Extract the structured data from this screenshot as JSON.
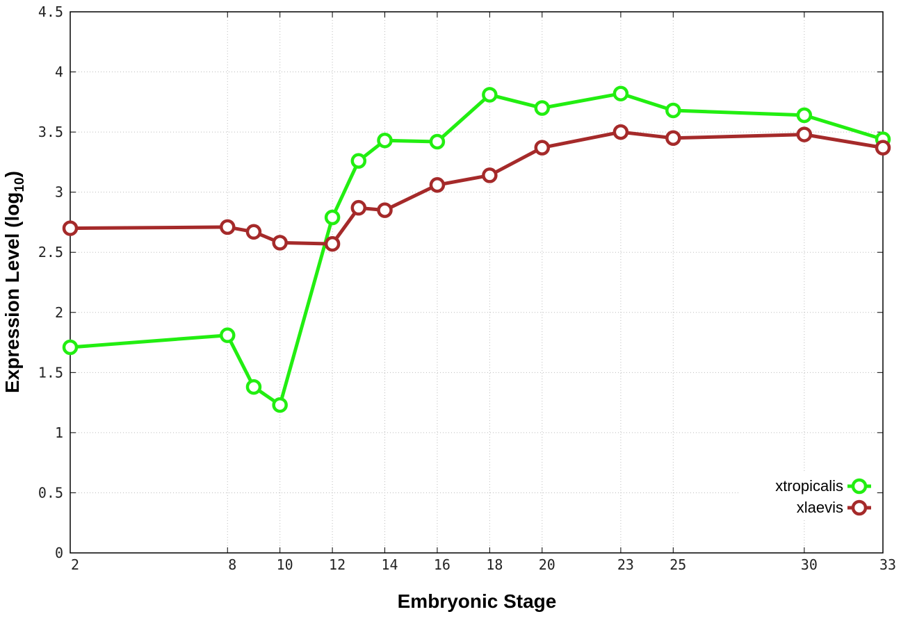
{
  "chart_data": {
    "type": "line",
    "xlabel": "Embryonic Stage",
    "ylabel": "Expression Level (log",
    "ylabel_subscript": "10",
    "ylabel_close": ")",
    "ylim": [
      0,
      4.5
    ],
    "xlim": [
      2,
      33
    ],
    "y_ticks": [
      0,
      0.5,
      1,
      1.5,
      2,
      2.5,
      3,
      3.5,
      4,
      4.5
    ],
    "y_tick_labels": [
      "0",
      "0.5",
      "1",
      "1.5",
      "2",
      "2.5",
      "3",
      "3.5",
      "4",
      "4.5"
    ],
    "x_ticks": [
      2,
      8,
      10,
      12,
      14,
      16,
      18,
      20,
      23,
      25,
      30,
      33
    ],
    "x_tick_labels": [
      "2",
      "8",
      "10",
      "12",
      "14",
      "16",
      "18",
      "20",
      "23",
      "25",
      "30",
      "33"
    ],
    "grid": true,
    "legend_position": "bottom-right",
    "x": [
      2,
      8,
      9,
      10,
      12,
      13,
      14,
      16,
      18,
      20,
      23,
      25,
      30,
      33
    ],
    "series": [
      {
        "name": "xtropicalis",
        "color": "#22ee11",
        "values": [
          1.71,
          1.81,
          1.38,
          1.23,
          2.79,
          3.26,
          3.43,
          3.42,
          3.81,
          3.7,
          3.82,
          3.68,
          3.64,
          3.44
        ]
      },
      {
        "name": "xlaevis",
        "color": "#a52a2a",
        "values": [
          2.7,
          2.71,
          2.67,
          2.58,
          2.57,
          2.87,
          2.85,
          3.06,
          3.14,
          3.37,
          3.5,
          3.45,
          3.48,
          3.37
        ]
      }
    ]
  }
}
